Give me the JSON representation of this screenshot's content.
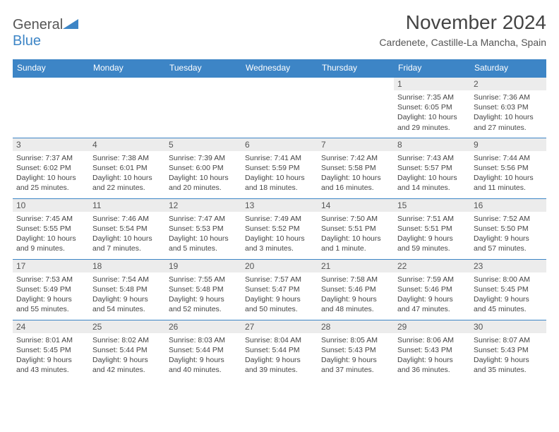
{
  "logo": {
    "word1": "General",
    "word2": "Blue"
  },
  "title": "November 2024",
  "location": "Cardenete, Castille-La Mancha, Spain",
  "colors": {
    "header_bg": "#3d85c6",
    "header_text": "#ffffff",
    "daynum_bg": "#ececec",
    "border": "#3d85c6",
    "body_text": "#454545"
  },
  "dayHeaders": [
    "Sunday",
    "Monday",
    "Tuesday",
    "Wednesday",
    "Thursday",
    "Friday",
    "Saturday"
  ],
  "weeks": [
    [
      null,
      null,
      null,
      null,
      null,
      {
        "num": "1",
        "sunrise": "Sunrise: 7:35 AM",
        "sunset": "Sunset: 6:05 PM",
        "daylight": "Daylight: 10 hours and 29 minutes."
      },
      {
        "num": "2",
        "sunrise": "Sunrise: 7:36 AM",
        "sunset": "Sunset: 6:03 PM",
        "daylight": "Daylight: 10 hours and 27 minutes."
      }
    ],
    [
      {
        "num": "3",
        "sunrise": "Sunrise: 7:37 AM",
        "sunset": "Sunset: 6:02 PM",
        "daylight": "Daylight: 10 hours and 25 minutes."
      },
      {
        "num": "4",
        "sunrise": "Sunrise: 7:38 AM",
        "sunset": "Sunset: 6:01 PM",
        "daylight": "Daylight: 10 hours and 22 minutes."
      },
      {
        "num": "5",
        "sunrise": "Sunrise: 7:39 AM",
        "sunset": "Sunset: 6:00 PM",
        "daylight": "Daylight: 10 hours and 20 minutes."
      },
      {
        "num": "6",
        "sunrise": "Sunrise: 7:41 AM",
        "sunset": "Sunset: 5:59 PM",
        "daylight": "Daylight: 10 hours and 18 minutes."
      },
      {
        "num": "7",
        "sunrise": "Sunrise: 7:42 AM",
        "sunset": "Sunset: 5:58 PM",
        "daylight": "Daylight: 10 hours and 16 minutes."
      },
      {
        "num": "8",
        "sunrise": "Sunrise: 7:43 AM",
        "sunset": "Sunset: 5:57 PM",
        "daylight": "Daylight: 10 hours and 14 minutes."
      },
      {
        "num": "9",
        "sunrise": "Sunrise: 7:44 AM",
        "sunset": "Sunset: 5:56 PM",
        "daylight": "Daylight: 10 hours and 11 minutes."
      }
    ],
    [
      {
        "num": "10",
        "sunrise": "Sunrise: 7:45 AM",
        "sunset": "Sunset: 5:55 PM",
        "daylight": "Daylight: 10 hours and 9 minutes."
      },
      {
        "num": "11",
        "sunrise": "Sunrise: 7:46 AM",
        "sunset": "Sunset: 5:54 PM",
        "daylight": "Daylight: 10 hours and 7 minutes."
      },
      {
        "num": "12",
        "sunrise": "Sunrise: 7:47 AM",
        "sunset": "Sunset: 5:53 PM",
        "daylight": "Daylight: 10 hours and 5 minutes."
      },
      {
        "num": "13",
        "sunrise": "Sunrise: 7:49 AM",
        "sunset": "Sunset: 5:52 PM",
        "daylight": "Daylight: 10 hours and 3 minutes."
      },
      {
        "num": "14",
        "sunrise": "Sunrise: 7:50 AM",
        "sunset": "Sunset: 5:51 PM",
        "daylight": "Daylight: 10 hours and 1 minute."
      },
      {
        "num": "15",
        "sunrise": "Sunrise: 7:51 AM",
        "sunset": "Sunset: 5:51 PM",
        "daylight": "Daylight: 9 hours and 59 minutes."
      },
      {
        "num": "16",
        "sunrise": "Sunrise: 7:52 AM",
        "sunset": "Sunset: 5:50 PM",
        "daylight": "Daylight: 9 hours and 57 minutes."
      }
    ],
    [
      {
        "num": "17",
        "sunrise": "Sunrise: 7:53 AM",
        "sunset": "Sunset: 5:49 PM",
        "daylight": "Daylight: 9 hours and 55 minutes."
      },
      {
        "num": "18",
        "sunrise": "Sunrise: 7:54 AM",
        "sunset": "Sunset: 5:48 PM",
        "daylight": "Daylight: 9 hours and 54 minutes."
      },
      {
        "num": "19",
        "sunrise": "Sunrise: 7:55 AM",
        "sunset": "Sunset: 5:48 PM",
        "daylight": "Daylight: 9 hours and 52 minutes."
      },
      {
        "num": "20",
        "sunrise": "Sunrise: 7:57 AM",
        "sunset": "Sunset: 5:47 PM",
        "daylight": "Daylight: 9 hours and 50 minutes."
      },
      {
        "num": "21",
        "sunrise": "Sunrise: 7:58 AM",
        "sunset": "Sunset: 5:46 PM",
        "daylight": "Daylight: 9 hours and 48 minutes."
      },
      {
        "num": "22",
        "sunrise": "Sunrise: 7:59 AM",
        "sunset": "Sunset: 5:46 PM",
        "daylight": "Daylight: 9 hours and 47 minutes."
      },
      {
        "num": "23",
        "sunrise": "Sunrise: 8:00 AM",
        "sunset": "Sunset: 5:45 PM",
        "daylight": "Daylight: 9 hours and 45 minutes."
      }
    ],
    [
      {
        "num": "24",
        "sunrise": "Sunrise: 8:01 AM",
        "sunset": "Sunset: 5:45 PM",
        "daylight": "Daylight: 9 hours and 43 minutes."
      },
      {
        "num": "25",
        "sunrise": "Sunrise: 8:02 AM",
        "sunset": "Sunset: 5:44 PM",
        "daylight": "Daylight: 9 hours and 42 minutes."
      },
      {
        "num": "26",
        "sunrise": "Sunrise: 8:03 AM",
        "sunset": "Sunset: 5:44 PM",
        "daylight": "Daylight: 9 hours and 40 minutes."
      },
      {
        "num": "27",
        "sunrise": "Sunrise: 8:04 AM",
        "sunset": "Sunset: 5:44 PM",
        "daylight": "Daylight: 9 hours and 39 minutes."
      },
      {
        "num": "28",
        "sunrise": "Sunrise: 8:05 AM",
        "sunset": "Sunset: 5:43 PM",
        "daylight": "Daylight: 9 hours and 37 minutes."
      },
      {
        "num": "29",
        "sunrise": "Sunrise: 8:06 AM",
        "sunset": "Sunset: 5:43 PM",
        "daylight": "Daylight: 9 hours and 36 minutes."
      },
      {
        "num": "30",
        "sunrise": "Sunrise: 8:07 AM",
        "sunset": "Sunset: 5:43 PM",
        "daylight": "Daylight: 9 hours and 35 minutes."
      }
    ]
  ]
}
